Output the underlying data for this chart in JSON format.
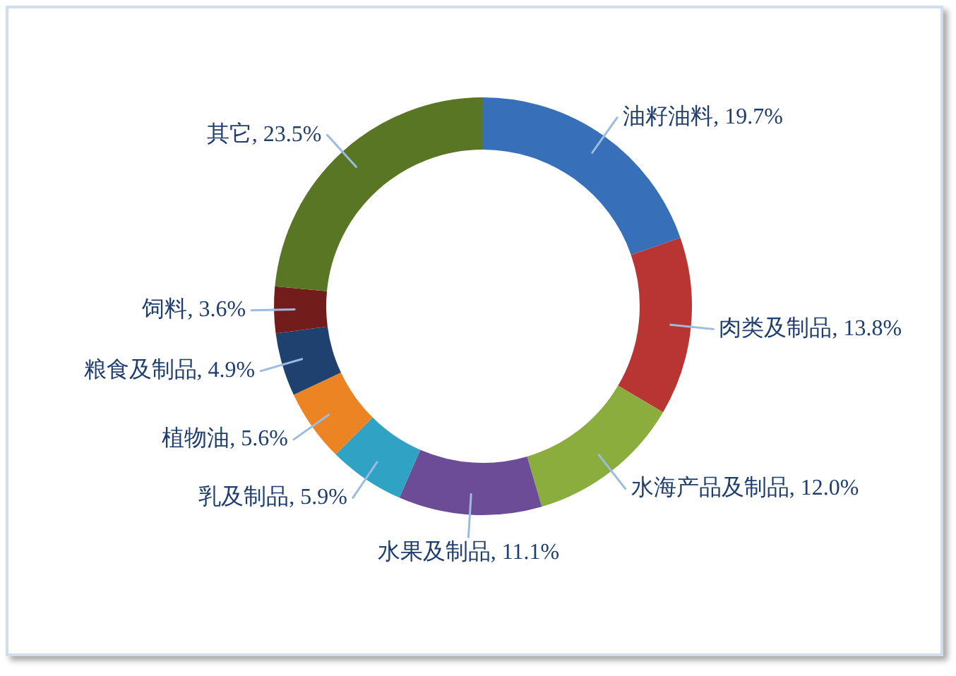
{
  "chart_data": {
    "type": "donut",
    "categories": [
      "油籽油料",
      "肉类及制品",
      "水海产品及制品",
      "水果及制品",
      "乳及制品",
      "植物油",
      "粮食及制品",
      "饲料",
      "其它"
    ],
    "values": [
      19.7,
      13.8,
      12.0,
      11.1,
      5.9,
      5.6,
      4.9,
      3.6,
      23.5
    ],
    "colors": [
      "#3770b8",
      "#b93533",
      "#8aad3e",
      "#6d4c97",
      "#30a2c3",
      "#ec8424",
      "#1f416f",
      "#721d1b",
      "#587624"
    ],
    "value_labels": [
      "19.7%",
      "13.8%",
      "12.0%",
      "11.1%",
      "5.9%",
      "5.6%",
      "4.9%",
      "3.6%",
      "23.5%"
    ]
  }
}
